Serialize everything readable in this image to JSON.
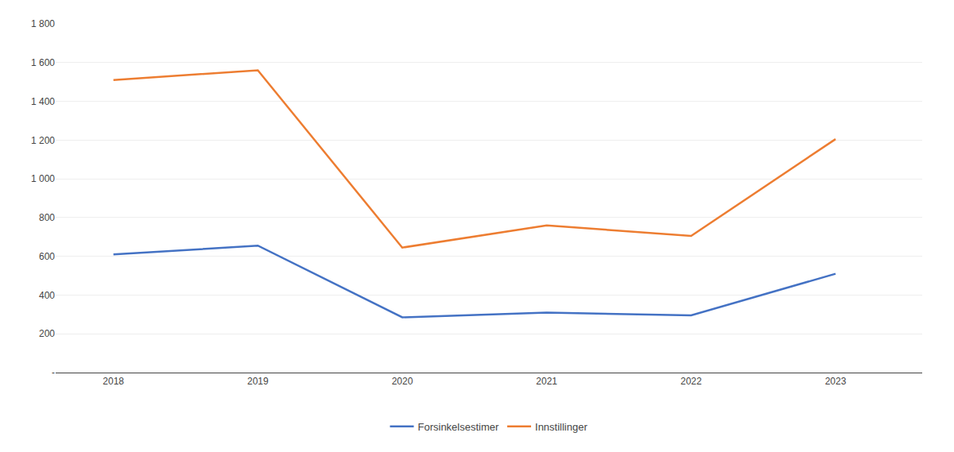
{
  "chart_data": {
    "type": "line",
    "x": [
      2018,
      2019,
      2020,
      2021,
      2022,
      2023
    ],
    "series": [
      {
        "name": "Forsinkelsestimer",
        "color": "#4472C4",
        "values": [
          610,
          655,
          285,
          310,
          295,
          510
        ]
      },
      {
        "name": "Innstillinger",
        "color": "#ED7D31",
        "values": [
          1510,
          1560,
          645,
          760,
          705,
          1205
        ]
      }
    ],
    "xlim": [
      2017.6,
      2023.6
    ],
    "xticks": [
      2018,
      2019,
      2020,
      2021,
      2022,
      2023
    ],
    "ylim": [
      0,
      1800
    ],
    "yticks": [
      {
        "value": 0,
        "label": "-"
      },
      200,
      400,
      600,
      800,
      {
        "value": 1000,
        "label": "1 000"
      },
      {
        "value": 1200,
        "label": "1 200"
      },
      {
        "value": 1400,
        "label": "1 400"
      },
      {
        "value": 1600,
        "label": "1 600"
      },
      {
        "value": 1800,
        "label": "1 800"
      }
    ],
    "grid": "y",
    "legend": "bottom"
  }
}
